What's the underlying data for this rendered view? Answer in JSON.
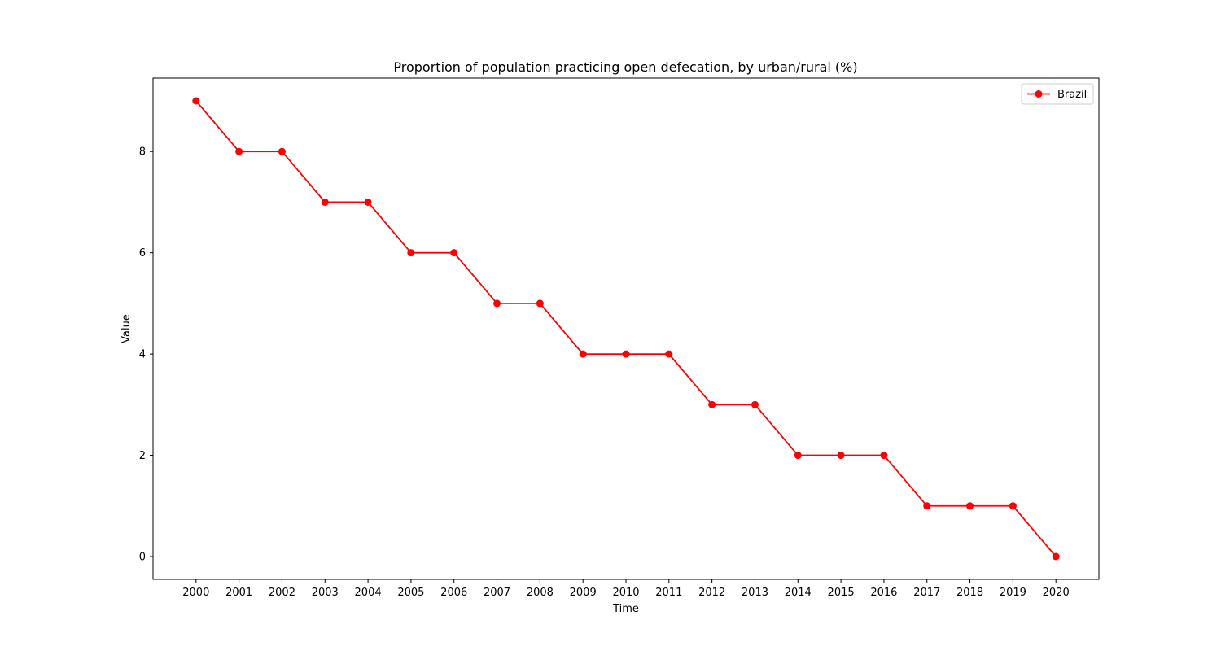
{
  "chart_data": {
    "type": "line",
    "title": "Proportion of population practicing open defecation, by urban/rural (%)",
    "xlabel": "Time",
    "ylabel": "Value",
    "x": [
      "2000",
      "2001",
      "2002",
      "2003",
      "2004",
      "2005",
      "2006",
      "2007",
      "2008",
      "2009",
      "2010",
      "2011",
      "2012",
      "2013",
      "2014",
      "2015",
      "2016",
      "2017",
      "2018",
      "2019",
      "2020"
    ],
    "y_ticks": [
      0,
      2,
      4,
      6,
      8
    ],
    "ylim": [
      -0.45,
      9.45
    ],
    "grid": false,
    "legend_position": "upper right",
    "series": [
      {
        "name": "Brazil",
        "color": "#ff0000",
        "marker": "circle",
        "values": [
          9,
          8,
          8,
          7,
          7,
          6,
          6,
          5,
          5,
          4,
          4,
          4,
          3,
          3,
          2,
          2,
          2,
          1,
          1,
          1,
          0
        ]
      }
    ]
  }
}
